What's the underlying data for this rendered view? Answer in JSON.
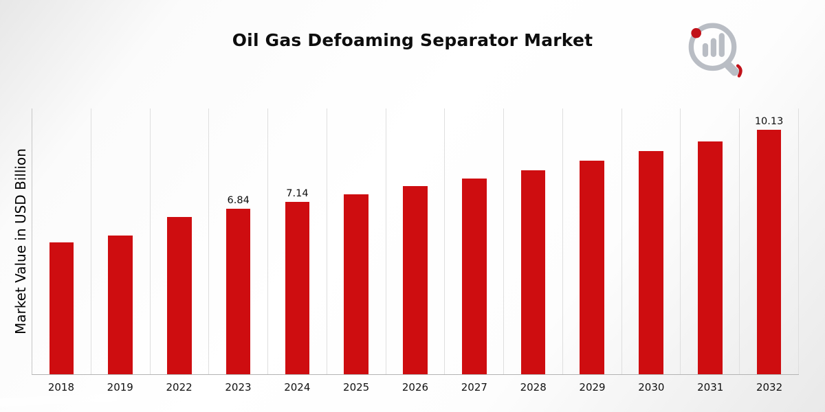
{
  "title": "Oil Gas Defoaming Separator Market",
  "ylabel": "Market Value in USD Billion",
  "logo": {
    "icon": "bar-chart-magnifier-logo-icon",
    "gray": "#b9bdc4",
    "red": "#c1121a"
  },
  "colors": {
    "bar": "#ce0d10",
    "gridline": "#dedede",
    "axis": "#b3b3b3",
    "band_top": "#e21b24",
    "band_bottom": "#970d12"
  },
  "chart_data": {
    "type": "bar",
    "title": "Oil Gas Defoaming Separator Market",
    "xlabel": "",
    "ylabel": "Market Value in USD Billion",
    "categories": [
      "2018",
      "2019",
      "2022",
      "2023",
      "2024",
      "2025",
      "2026",
      "2027",
      "2028",
      "2029",
      "2030",
      "2031",
      "2032"
    ],
    "values": [
      5.45,
      5.75,
      6.5,
      6.84,
      7.14,
      7.45,
      7.8,
      8.1,
      8.45,
      8.85,
      9.25,
      9.65,
      10.13
    ],
    "value_labels": [
      "",
      "",
      "",
      "6.84",
      "7.14",
      "",
      "",
      "",
      "",
      "",
      "",
      "",
      "10.13"
    ],
    "bar_color": "#ce0d10",
    "ylim": [
      0,
      11
    ],
    "grid": "vertical-only",
    "legend": false
  }
}
